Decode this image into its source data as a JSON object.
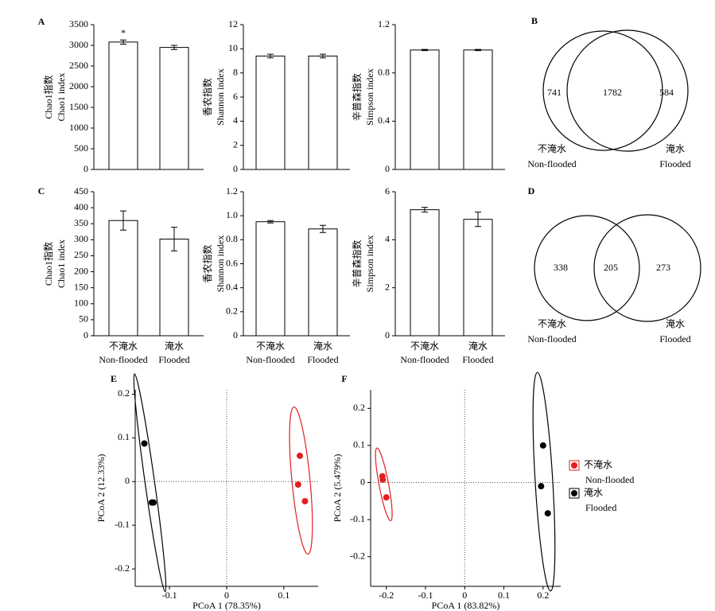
{
  "chart_data": [
    {
      "type": "bar",
      "panel": "A",
      "ylabel": [
        "Chao1指数",
        "Chao1 index"
      ],
      "categories": [
        null,
        null
      ],
      "values": [
        3080,
        2950
      ],
      "errors": [
        50,
        50
      ],
      "significance": [
        "*",
        null
      ],
      "ylim": [
        0,
        3500
      ],
      "yticks": [
        0,
        500,
        1000,
        1500,
        2000,
        2500,
        3000,
        3500
      ],
      "color": "#ffffff"
    },
    {
      "type": "bar",
      "ylabel": [
        "香农指数",
        "Shannon index"
      ],
      "categories": [
        null,
        null
      ],
      "values": [
        9.4,
        9.4
      ],
      "errors": [
        0.15,
        0.15
      ],
      "ylim": [
        0,
        12
      ],
      "yticks": [
        0,
        2,
        4,
        6,
        8,
        10,
        12
      ],
      "color": "#ffffff"
    },
    {
      "type": "bar",
      "ylabel": [
        "辛普森指数",
        "Simpson index"
      ],
      "categories": [
        null,
        null
      ],
      "values": [
        0.99,
        0.99
      ],
      "errors": [
        0.005,
        0.005
      ],
      "ylim": [
        0,
        1.2
      ],
      "yticks": [
        0,
        0.4,
        0.8,
        1.2
      ],
      "color": "#ffffff"
    },
    {
      "type": "venn",
      "panel": "B",
      "values": [
        741,
        1782,
        584
      ],
      "sets": [
        [
          "不淹水",
          "Non-flooded"
        ],
        [
          "淹水",
          "Flooded"
        ]
      ]
    },
    {
      "type": "bar",
      "panel": "C",
      "ylabel": [
        "Chao1指数",
        "Chao1 index"
      ],
      "categories": [
        [
          "不淹水",
          "Non-flooded"
        ],
        [
          "淹水",
          "Flooded"
        ]
      ],
      "values": [
        360,
        302
      ],
      "errors": [
        30,
        37
      ],
      "ylim": [
        0,
        450
      ],
      "yticks": [
        0,
        50,
        100,
        150,
        200,
        250,
        300,
        350,
        400,
        450
      ],
      "color": "#ffffff"
    },
    {
      "type": "bar",
      "ylabel": [
        "香农指数",
        "Shannon index"
      ],
      "categories": [
        [
          "不淹水",
          "Non-flooded"
        ],
        [
          "淹水",
          "Flooded"
        ]
      ],
      "values": [
        0.95,
        0.89
      ],
      "errors": [
        0.01,
        0.03
      ],
      "ylim": [
        0,
        1.2
      ],
      "yticks": [
        0,
        0.2,
        0.4,
        0.6,
        0.8,
        {
          "value": 1,
          "label": "1.0"
        },
        1.2
      ],
      "color": "#ffffff"
    },
    {
      "type": "bar",
      "ylabel": [
        "辛普森指数",
        "Simpson index"
      ],
      "categories": [
        [
          "不淹水",
          "Non-flooded"
        ],
        [
          "淹水",
          "Flooded"
        ]
      ],
      "values": [
        5.25,
        4.85
      ],
      "errors": [
        0.1,
        0.3
      ],
      "ylim": [
        0,
        6
      ],
      "yticks": [
        0,
        2,
        4,
        6
      ],
      "color": "#ffffff"
    },
    {
      "type": "venn",
      "panel": "D",
      "values": [
        338,
        205,
        273
      ],
      "sets": [
        [
          "不淹水",
          "Non-flooded"
        ],
        [
          "淹水",
          "Flooded"
        ]
      ]
    },
    {
      "type": "scatter",
      "panel": "E",
      "xlabel": "PCoA 1 (78.35%)",
      "ylabel": "PCoA 2 (12.33%)",
      "xlim": [
        -0.16,
        0.16
      ],
      "ylim": [
        -0.24,
        0.21
      ],
      "xticks": [
        -0.1,
        0,
        0.1
      ],
      "yticks": [
        -0.2,
        -0.1,
        0,
        0.1,
        0.2
      ],
      "series": [
        {
          "color": "#e02020",
          "x": [
            0.128,
            0.125,
            0.137
          ],
          "values": [
            0.059,
            -0.007,
            -0.045
          ]
        },
        {
          "color": "#000000",
          "x": [
            -0.144,
            -0.128,
            -0.131
          ],
          "values": [
            0.087,
            -0.048,
            -0.048
          ]
        }
      ]
    },
    {
      "type": "scatter",
      "panel": "F",
      "xlabel": "PCoA 1 (83.82%)",
      "ylabel": "PCoA 2 (5.479%)",
      "xlim": [
        -0.24,
        0.245
      ],
      "ylim": [
        -0.28,
        0.25
      ],
      "xticks": [
        -0.2,
        -0.1,
        0,
        0.1,
        0.2
      ],
      "yticks": [
        -0.2,
        -0.1,
        0,
        0.1,
        0.2
      ],
      "legend": "right",
      "series": [
        {
          "name": "不淹水",
          "name_en": "Non-flooded",
          "color": "#e02020",
          "x": [
            -0.21,
            -0.209,
            -0.2
          ],
          "values": [
            0.017,
            0.008,
            -0.04
          ]
        },
        {
          "name": "淹水",
          "name_en": "Flooded",
          "color": "#000000",
          "x": [
            0.2,
            0.195,
            0.212
          ],
          "values": [
            0.1,
            -0.01,
            -0.083
          ]
        }
      ]
    }
  ]
}
